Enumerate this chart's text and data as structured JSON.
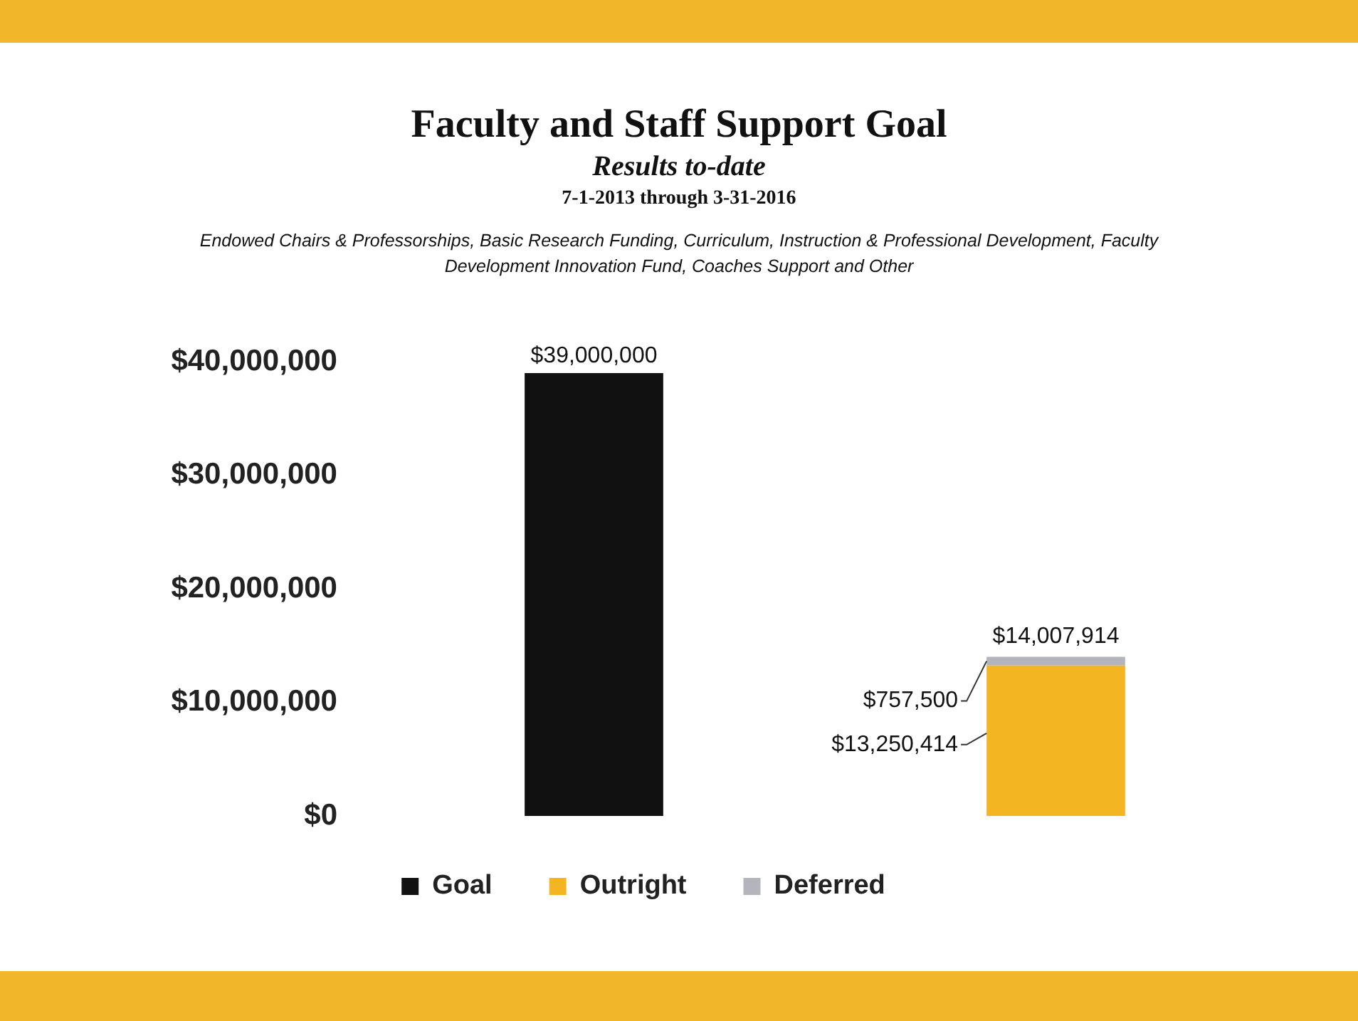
{
  "chart_data": {
    "type": "bar",
    "title": "Faculty and Staff Support Goal",
    "subtitle": "Results to-date",
    "annotations": [
      "7-1-2013 through 3-31-2016",
      "Endowed Chairs & Professorships, Basic Research Funding, Curriculum, Instruction & Professional Development, Faculty Development Innovation Fund, Coaches Support and Other"
    ],
    "categories": [
      null,
      null
    ],
    "series": [
      {
        "name": "Goal",
        "color": "#111111",
        "values": [
          39000000,
          null
        ],
        "value_labels": [
          "$39,000,000",
          null
        ]
      },
      {
        "name": "Outright",
        "color": "#f4b522",
        "values": [
          null,
          13250414
        ],
        "value_labels": [
          null,
          "$13,250,414"
        ]
      },
      {
        "name": "Deferred",
        "color": "#b4b4bc",
        "values": [
          null,
          757500
        ],
        "value_labels": [
          null,
          "$757,500"
        ]
      }
    ],
    "totals": [
      null,
      "$14,007,914"
    ],
    "stacked": true,
    "ylim": [
      0,
      40000000
    ],
    "yticks": [
      {
        "value": 0,
        "label": "$0"
      },
      {
        "value": 10000000,
        "label": "$10,000,000"
      },
      {
        "value": 20000000,
        "label": "$20,000,000"
      },
      {
        "value": 30000000,
        "label": "$30,000,000"
      },
      {
        "value": 40000000,
        "label": "$40,000,000"
      }
    ],
    "tick_labels": "y",
    "grid": false,
    "legend": "bottom"
  }
}
